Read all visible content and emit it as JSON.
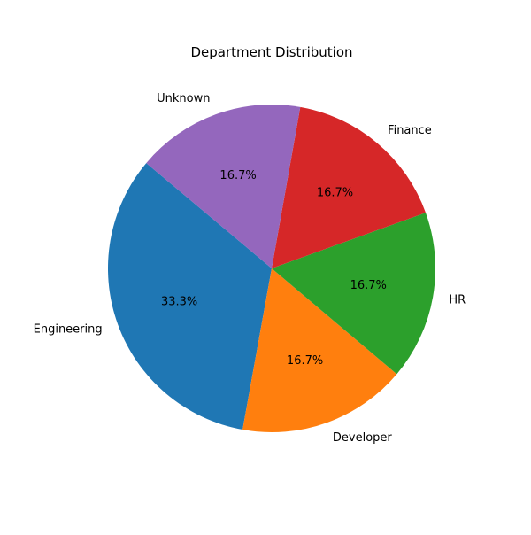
{
  "chart_data": {
    "type": "pie",
    "title": "Department Distribution",
    "start_angle_deg": 140,
    "direction": "counterclockwise",
    "slices": [
      {
        "label": "Engineering",
        "value": 33.3,
        "pct_label": "33.3%",
        "color": "#1f77b4"
      },
      {
        "label": "Developer",
        "value": 16.7,
        "pct_label": "16.7%",
        "color": "#ff7f0e"
      },
      {
        "label": "HR",
        "value": 16.7,
        "pct_label": "16.7%",
        "color": "#2ca02c"
      },
      {
        "label": "Finance",
        "value": 16.7,
        "pct_label": "16.7%",
        "color": "#d62728"
      },
      {
        "label": "Unknown",
        "value": 16.7,
        "pct_label": "16.7%",
        "color": "#9467bd"
      }
    ]
  }
}
